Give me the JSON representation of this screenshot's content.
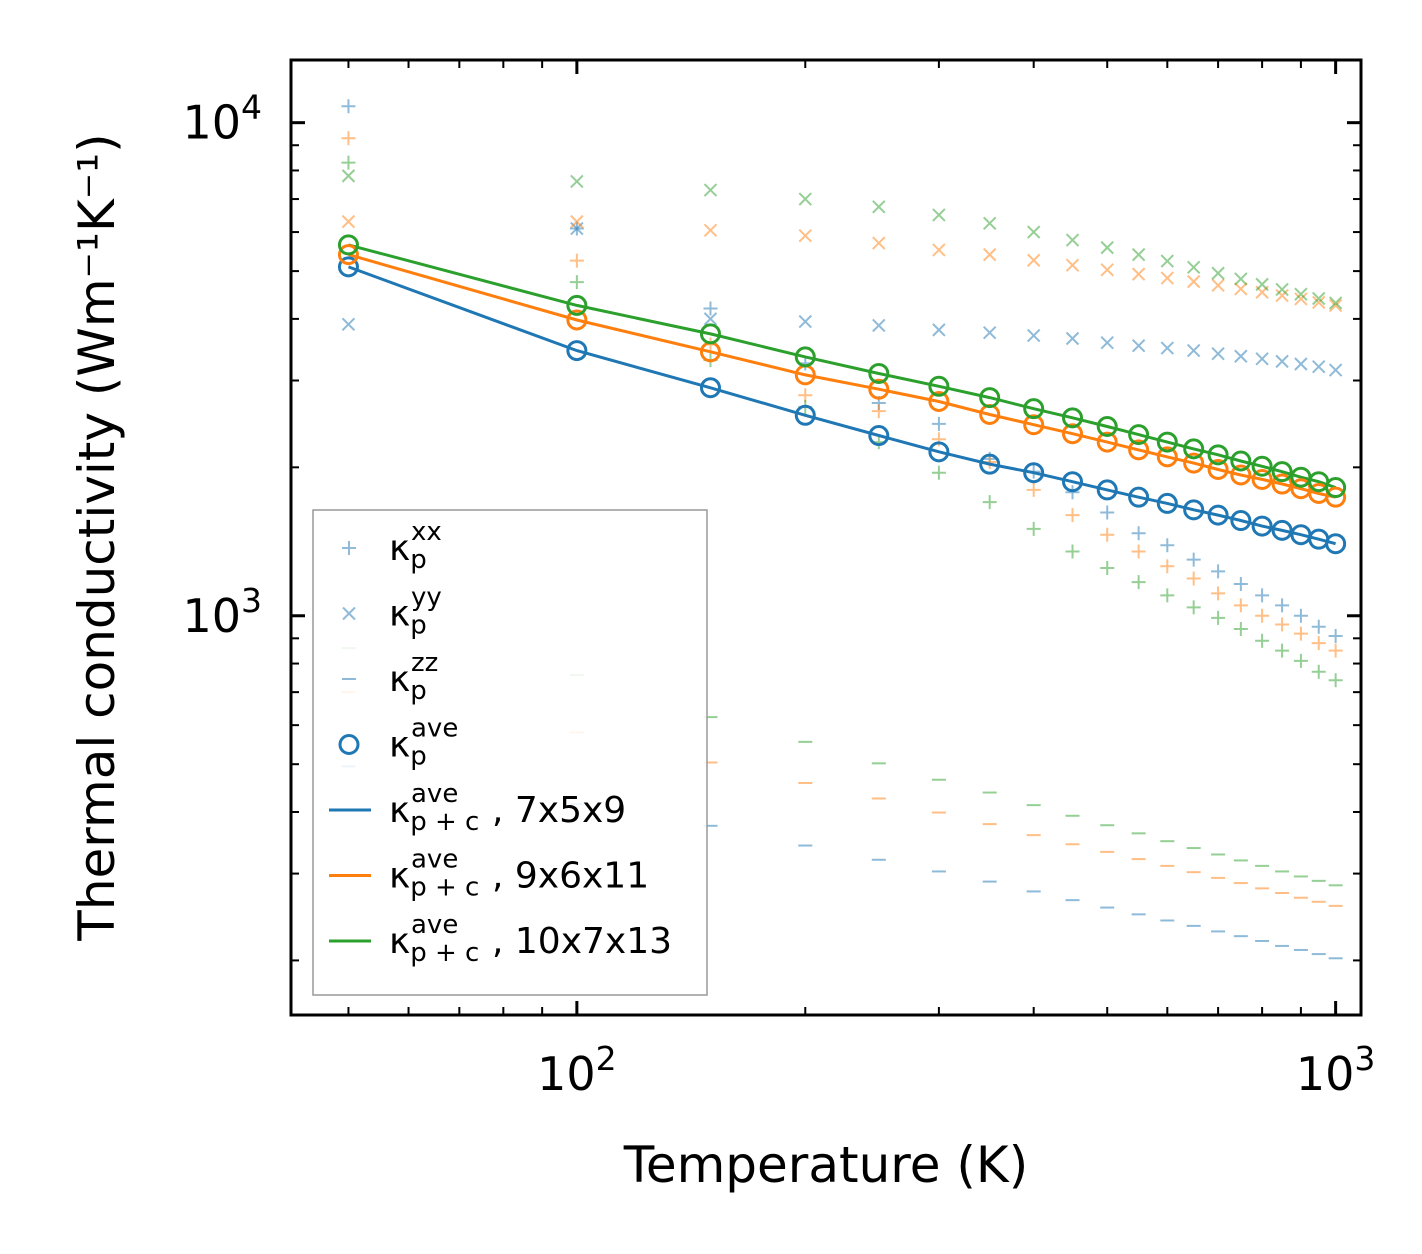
{
  "chart_data": {
    "type": "scatter",
    "title": "",
    "xlabel": "Temperature (K)",
    "ylabel": "Thermal conductivity (Wm⁻¹K⁻¹)",
    "xscale": "log",
    "yscale": "log",
    "xlim": [
      42,
      1080
    ],
    "ylim": [
      155,
      13400
    ],
    "xticks": [
      {
        "value": 100,
        "base": "10",
        "exp": "2"
      },
      {
        "value": 1000,
        "base": "10",
        "exp": "3"
      }
    ],
    "yticks": [
      {
        "value": 1000,
        "base": "10",
        "exp": "3"
      },
      {
        "value": 10000,
        "base": "10",
        "exp": "4"
      }
    ],
    "colors": {
      "blue": "#1f77b4",
      "orange": "#ff7f0e",
      "green": "#2ca02c"
    },
    "x": [
      50,
      100,
      150,
      200,
      250,
      300,
      350,
      400,
      450,
      500,
      550,
      600,
      650,
      700,
      750,
      800,
      850,
      900,
      950,
      1000
    ],
    "series": [
      {
        "name": "kxx-7x5x9",
        "legend_index": 0,
        "color": "#1f77b4",
        "marker": "plus",
        "alpha": 0.5,
        "values": [
          10800,
          6100,
          4200,
          3250,
          2700,
          2450,
          2080,
          1960,
          1780,
          1620,
          1470,
          1390,
          1300,
          1230,
          1160,
          1100,
          1050,
          1000,
          950,
          910
        ]
      },
      {
        "name": "kxx-9x6x11",
        "color": "#ff7f0e",
        "marker": "plus",
        "alpha": 0.5,
        "values": [
          9300,
          5250,
          3550,
          2800,
          2600,
          2280,
          2050,
          1800,
          1600,
          1460,
          1350,
          1260,
          1190,
          1110,
          1050,
          1000,
          960,
          920,
          880,
          850
        ]
      },
      {
        "name": "kxx-10x7x13",
        "color": "#2ca02c",
        "marker": "plus",
        "alpha": 0.5,
        "values": [
          8300,
          4750,
          3300,
          2650,
          2250,
          1950,
          1700,
          1500,
          1350,
          1250,
          1170,
          1100,
          1040,
          990,
          940,
          890,
          850,
          810,
          770,
          740
        ]
      },
      {
        "name": "kyy-7x5x9",
        "legend_index": 1,
        "color": "#1f77b4",
        "marker": "x",
        "alpha": 0.5,
        "values": [
          3900,
          6100,
          4000,
          3950,
          3880,
          3800,
          3750,
          3700,
          3650,
          3580,
          3530,
          3490,
          3450,
          3400,
          3360,
          3320,
          3280,
          3240,
          3200,
          3150
        ]
      },
      {
        "name": "kyy-9x6x11",
        "color": "#ff7f0e",
        "marker": "x",
        "alpha": 0.5,
        "values": [
          6300,
          6300,
          6050,
          5900,
          5700,
          5520,
          5400,
          5260,
          5140,
          5030,
          4930,
          4840,
          4760,
          4680,
          4600,
          4530,
          4460,
          4390,
          4320,
          4260
        ]
      },
      {
        "name": "kyy-10x7x13",
        "color": "#2ca02c",
        "marker": "x",
        "alpha": 0.5,
        "values": [
          7800,
          7600,
          7300,
          7000,
          6750,
          6500,
          6250,
          6000,
          5780,
          5580,
          5400,
          5240,
          5090,
          4950,
          4820,
          4700,
          4590,
          4490,
          4400,
          4310
        ]
      },
      {
        "name": "kzz-7x5x9",
        "legend_index": 2,
        "color": "#1f77b4",
        "marker": "hline",
        "alpha": 0.5,
        "values": [
          495,
          415,
          375,
          342,
          320,
          303,
          289,
          276,
          265,
          256,
          248,
          241,
          235,
          229,
          224,
          219,
          214,
          210,
          206,
          202
        ]
      },
      {
        "name": "kzz-9x6x11",
        "color": "#ff7f0e",
        "marker": "hline",
        "alpha": 0.5,
        "values": [
          700,
          580,
          504,
          458,
          426,
          399,
          378,
          359,
          344,
          332,
          321,
          311,
          302,
          294,
          287,
          280,
          274,
          268,
          263,
          258
        ]
      },
      {
        "name": "kzz-10x7x13",
        "color": "#2ca02c",
        "marker": "hline",
        "alpha": 0.5,
        "values": [
          860,
          758,
          623,
          555,
          502,
          465,
          438,
          413,
          393,
          376,
          362,
          349,
          338,
          328,
          319,
          311,
          303,
          296,
          290,
          284
        ]
      },
      {
        "name": "kave-7x5x9",
        "legend_index": 3,
        "color": "#1f77b4",
        "marker": "circle",
        "alpha": 1,
        "values": [
          5100,
          3450,
          2900,
          2550,
          2320,
          2150,
          2030,
          1950,
          1870,
          1800,
          1740,
          1690,
          1640,
          1600,
          1560,
          1520,
          1490,
          1460,
          1430,
          1400
        ]
      },
      {
        "name": "kave-9x6x11",
        "color": "#ff7f0e",
        "marker": "circle",
        "alpha": 1,
        "values": [
          5400,
          3980,
          3430,
          3080,
          2880,
          2720,
          2560,
          2440,
          2340,
          2250,
          2170,
          2100,
          2040,
          1980,
          1930,
          1890,
          1850,
          1810,
          1770,
          1740
        ]
      },
      {
        "name": "kave-10x7x13",
        "color": "#2ca02c",
        "marker": "circle",
        "alpha": 1,
        "values": [
          5650,
          4260,
          3730,
          3350,
          3100,
          2920,
          2770,
          2630,
          2520,
          2420,
          2330,
          2250,
          2180,
          2120,
          2060,
          2010,
          1960,
          1910,
          1870,
          1820
        ]
      },
      {
        "name": "kpc-7x5x9",
        "legend_index": 4,
        "color": "#1f77b4",
        "marker": "line",
        "alpha": 1,
        "values": [
          5100,
          3450,
          2900,
          2550,
          2320,
          2150,
          2030,
          1950,
          1870,
          1800,
          1740,
          1690,
          1640,
          1600,
          1560,
          1520,
          1490,
          1460,
          1430,
          1400
        ]
      },
      {
        "name": "kpc-9x6x11",
        "legend_index": 5,
        "color": "#ff7f0e",
        "marker": "line",
        "alpha": 1,
        "values": [
          5400,
          3980,
          3430,
          3080,
          2880,
          2720,
          2560,
          2440,
          2340,
          2250,
          2170,
          2100,
          2040,
          1980,
          1930,
          1890,
          1850,
          1810,
          1770,
          1740
        ]
      },
      {
        "name": "kpc-10x7x13",
        "legend_index": 6,
        "color": "#2ca02c",
        "marker": "line",
        "alpha": 1,
        "values": [
          5650,
          4260,
          3730,
          3350,
          3100,
          2920,
          2770,
          2630,
          2520,
          2420,
          2330,
          2250,
          2180,
          2120,
          2060,
          2010,
          1960,
          1910,
          1870,
          1820
        ]
      }
    ],
    "legend": {
      "position": "lower-left",
      "entries": [
        {
          "symbol": "κ",
          "sub": "p",
          "sup": "xx",
          "suffix": "",
          "marker": "plus",
          "color": "#1f77b4"
        },
        {
          "symbol": "κ",
          "sub": "p",
          "sup": "yy",
          "suffix": "",
          "marker": "x",
          "color": "#1f77b4"
        },
        {
          "symbol": "κ",
          "sub": "p",
          "sup": "zz",
          "suffix": "",
          "marker": "hline",
          "color": "#1f77b4"
        },
        {
          "symbol": "κ",
          "sub": "p",
          "sup": "ave",
          "suffix": "",
          "marker": "circle",
          "color": "#1f77b4"
        },
        {
          "symbol": "κ",
          "sub": "p + c",
          "sup": "ave",
          "suffix": ", 7x5x9",
          "marker": "line",
          "color": "#1f77b4"
        },
        {
          "symbol": "κ",
          "sub": "p + c",
          "sup": "ave",
          "suffix": ", 9x6x11",
          "marker": "line",
          "color": "#ff7f0e"
        },
        {
          "symbol": "κ",
          "sub": "p + c",
          "sup": "ave",
          "suffix": ", 10x7x13",
          "marker": "line",
          "color": "#2ca02c"
        }
      ]
    }
  }
}
